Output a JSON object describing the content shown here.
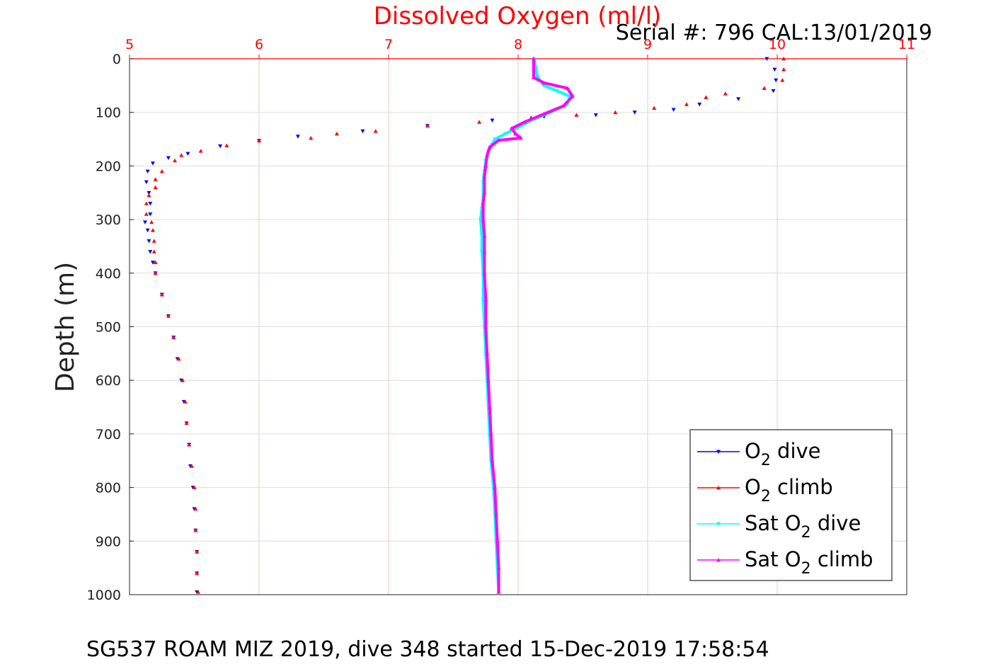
{
  "chart_data": {
    "type": "scatter",
    "title": "Dissolved Oxygen (ml/l)",
    "subtitle": "Serial #: 796  CAL:13/01/2019",
    "caption": "SG537 ROAM MIZ 2019, dive 348 started 15-Dec-2019 17:58:54",
    "ylabel": "Depth (m)",
    "xlabel": "",
    "xlim": [
      5,
      11
    ],
    "ylim": [
      0,
      1000
    ],
    "y_reversed": true,
    "x_axis_position": "top",
    "x_ticks": [
      "5",
      "6",
      "7",
      "8",
      "9",
      "10",
      "11"
    ],
    "y_ticks": [
      "0",
      "100",
      "200",
      "300",
      "400",
      "500",
      "600",
      "700",
      "800",
      "900",
      "1000"
    ],
    "grid": true,
    "legend_position": "bottom-right",
    "series": [
      {
        "name": "O2 dive",
        "legend_main": "O",
        "legend_sub": "2",
        "legend_after": " dive",
        "color": "#0000ff",
        "marker": "triangle-down",
        "points": [
          [
            9.92,
            0
          ],
          [
            9.98,
            20
          ],
          [
            9.99,
            40
          ],
          [
            9.97,
            60
          ],
          [
            9.7,
            75
          ],
          [
            9.4,
            85
          ],
          [
            9.2,
            95
          ],
          [
            8.9,
            100
          ],
          [
            8.6,
            105
          ],
          [
            8.2,
            108
          ],
          [
            7.8,
            115
          ],
          [
            7.3,
            125
          ],
          [
            6.8,
            135
          ],
          [
            6.3,
            145
          ],
          [
            6.0,
            153
          ],
          [
            5.7,
            163
          ],
          [
            5.45,
            177
          ],
          [
            5.3,
            185
          ],
          [
            5.18,
            195
          ],
          [
            5.14,
            210
          ],
          [
            5.13,
            230
          ],
          [
            5.15,
            250
          ],
          [
            5.16,
            270
          ],
          [
            5.16,
            290
          ],
          [
            5.12,
            305
          ],
          [
            5.14,
            320
          ],
          [
            5.15,
            340
          ],
          [
            5.16,
            360
          ],
          [
            5.18,
            380
          ],
          [
            5.2,
            400
          ],
          [
            5.25,
            440
          ],
          [
            5.3,
            480
          ],
          [
            5.34,
            520
          ],
          [
            5.37,
            560
          ],
          [
            5.4,
            600
          ],
          [
            5.42,
            640
          ],
          [
            5.44,
            680
          ],
          [
            5.46,
            720
          ],
          [
            5.47,
            760
          ],
          [
            5.49,
            800
          ],
          [
            5.5,
            840
          ],
          [
            5.51,
            880
          ],
          [
            5.52,
            920
          ],
          [
            5.52,
            960
          ],
          [
            5.52,
            995
          ]
        ]
      },
      {
        "name": "O2 climb",
        "legend_main": "O",
        "legend_sub": "2",
        "legend_after": " climb",
        "color": "#ff0000",
        "marker": "triangle-up",
        "points": [
          [
            10.05,
            0
          ],
          [
            10.05,
            20
          ],
          [
            10.04,
            40
          ],
          [
            9.9,
            55
          ],
          [
            9.6,
            65
          ],
          [
            9.45,
            72
          ],
          [
            9.3,
            85
          ],
          [
            9.05,
            92
          ],
          [
            8.75,
            100
          ],
          [
            8.45,
            105
          ],
          [
            8.1,
            110
          ],
          [
            7.7,
            118
          ],
          [
            7.3,
            125
          ],
          [
            6.9,
            135
          ],
          [
            6.6,
            140
          ],
          [
            6.4,
            148
          ],
          [
            6.0,
            153
          ],
          [
            5.75,
            162
          ],
          [
            5.55,
            172
          ],
          [
            5.4,
            180
          ],
          [
            5.35,
            190
          ],
          [
            5.25,
            210
          ],
          [
            5.2,
            225
          ],
          [
            5.2,
            240
          ],
          [
            5.15,
            255
          ],
          [
            5.13,
            270
          ],
          [
            5.13,
            290
          ],
          [
            5.17,
            305
          ],
          [
            5.18,
            320
          ],
          [
            5.19,
            340
          ],
          [
            5.19,
            360
          ],
          [
            5.2,
            380
          ],
          [
            5.2,
            400
          ],
          [
            5.25,
            440
          ],
          [
            5.3,
            480
          ],
          [
            5.34,
            520
          ],
          [
            5.38,
            560
          ],
          [
            5.41,
            600
          ],
          [
            5.43,
            640
          ],
          [
            5.44,
            680
          ],
          [
            5.46,
            720
          ],
          [
            5.48,
            760
          ],
          [
            5.5,
            800
          ],
          [
            5.51,
            840
          ],
          [
            5.51,
            880
          ],
          [
            5.52,
            920
          ],
          [
            5.52,
            960
          ],
          [
            5.53,
            995
          ]
        ]
      },
      {
        "name": "Sat O2 dive",
        "legend_main": "Sat O",
        "legend_sub": "2",
        "legend_after": " dive",
        "color": "#00ffff",
        "marker": "triangle-down",
        "points": [
          [
            8.12,
            0
          ],
          [
            8.14,
            20
          ],
          [
            8.15,
            35
          ],
          [
            8.2,
            50
          ],
          [
            8.3,
            60
          ],
          [
            8.4,
            70
          ],
          [
            8.38,
            85
          ],
          [
            8.25,
            100
          ],
          [
            8.1,
            115
          ],
          [
            8.0,
            128
          ],
          [
            7.9,
            140
          ],
          [
            7.82,
            150
          ],
          [
            7.8,
            160
          ],
          [
            7.77,
            175
          ],
          [
            7.75,
            190
          ],
          [
            7.74,
            210
          ],
          [
            7.73,
            230
          ],
          [
            7.73,
            260
          ],
          [
            7.72,
            280
          ],
          [
            7.71,
            300
          ],
          [
            7.72,
            330
          ],
          [
            7.72,
            360
          ],
          [
            7.73,
            400
          ],
          [
            7.73,
            450
          ],
          [
            7.74,
            500
          ],
          [
            7.75,
            550
          ],
          [
            7.76,
            600
          ],
          [
            7.77,
            650
          ],
          [
            7.78,
            700
          ],
          [
            7.79,
            750
          ],
          [
            7.81,
            800
          ],
          [
            7.82,
            850
          ],
          [
            7.83,
            900
          ],
          [
            7.84,
            950
          ],
          [
            7.85,
            995
          ]
        ]
      },
      {
        "name": "Sat O2 climb",
        "legend_main": "Sat O",
        "legend_sub": "2",
        "legend_after": " climb",
        "color": "#ff00ff",
        "marker": "triangle-up",
        "points": [
          [
            8.12,
            0
          ],
          [
            8.12,
            20
          ],
          [
            8.12,
            35
          ],
          [
            8.2,
            45
          ],
          [
            8.38,
            55
          ],
          [
            8.42,
            70
          ],
          [
            8.35,
            88
          ],
          [
            8.2,
            103
          ],
          [
            8.05,
            118
          ],
          [
            7.95,
            130
          ],
          [
            7.98,
            140
          ],
          [
            8.02,
            148
          ],
          [
            7.85,
            152
          ],
          [
            7.78,
            165
          ],
          [
            7.76,
            180
          ],
          [
            7.75,
            200
          ],
          [
            7.74,
            220
          ],
          [
            7.74,
            250
          ],
          [
            7.73,
            270
          ],
          [
            7.73,
            300
          ],
          [
            7.74,
            330
          ],
          [
            7.74,
            360
          ],
          [
            7.74,
            400
          ],
          [
            7.75,
            450
          ],
          [
            7.75,
            500
          ],
          [
            7.76,
            550
          ],
          [
            7.77,
            600
          ],
          [
            7.78,
            650
          ],
          [
            7.79,
            700
          ],
          [
            7.8,
            750
          ],
          [
            7.82,
            800
          ],
          [
            7.83,
            850
          ],
          [
            7.84,
            900
          ],
          [
            7.85,
            950
          ],
          [
            7.85,
            995
          ]
        ]
      }
    ]
  }
}
